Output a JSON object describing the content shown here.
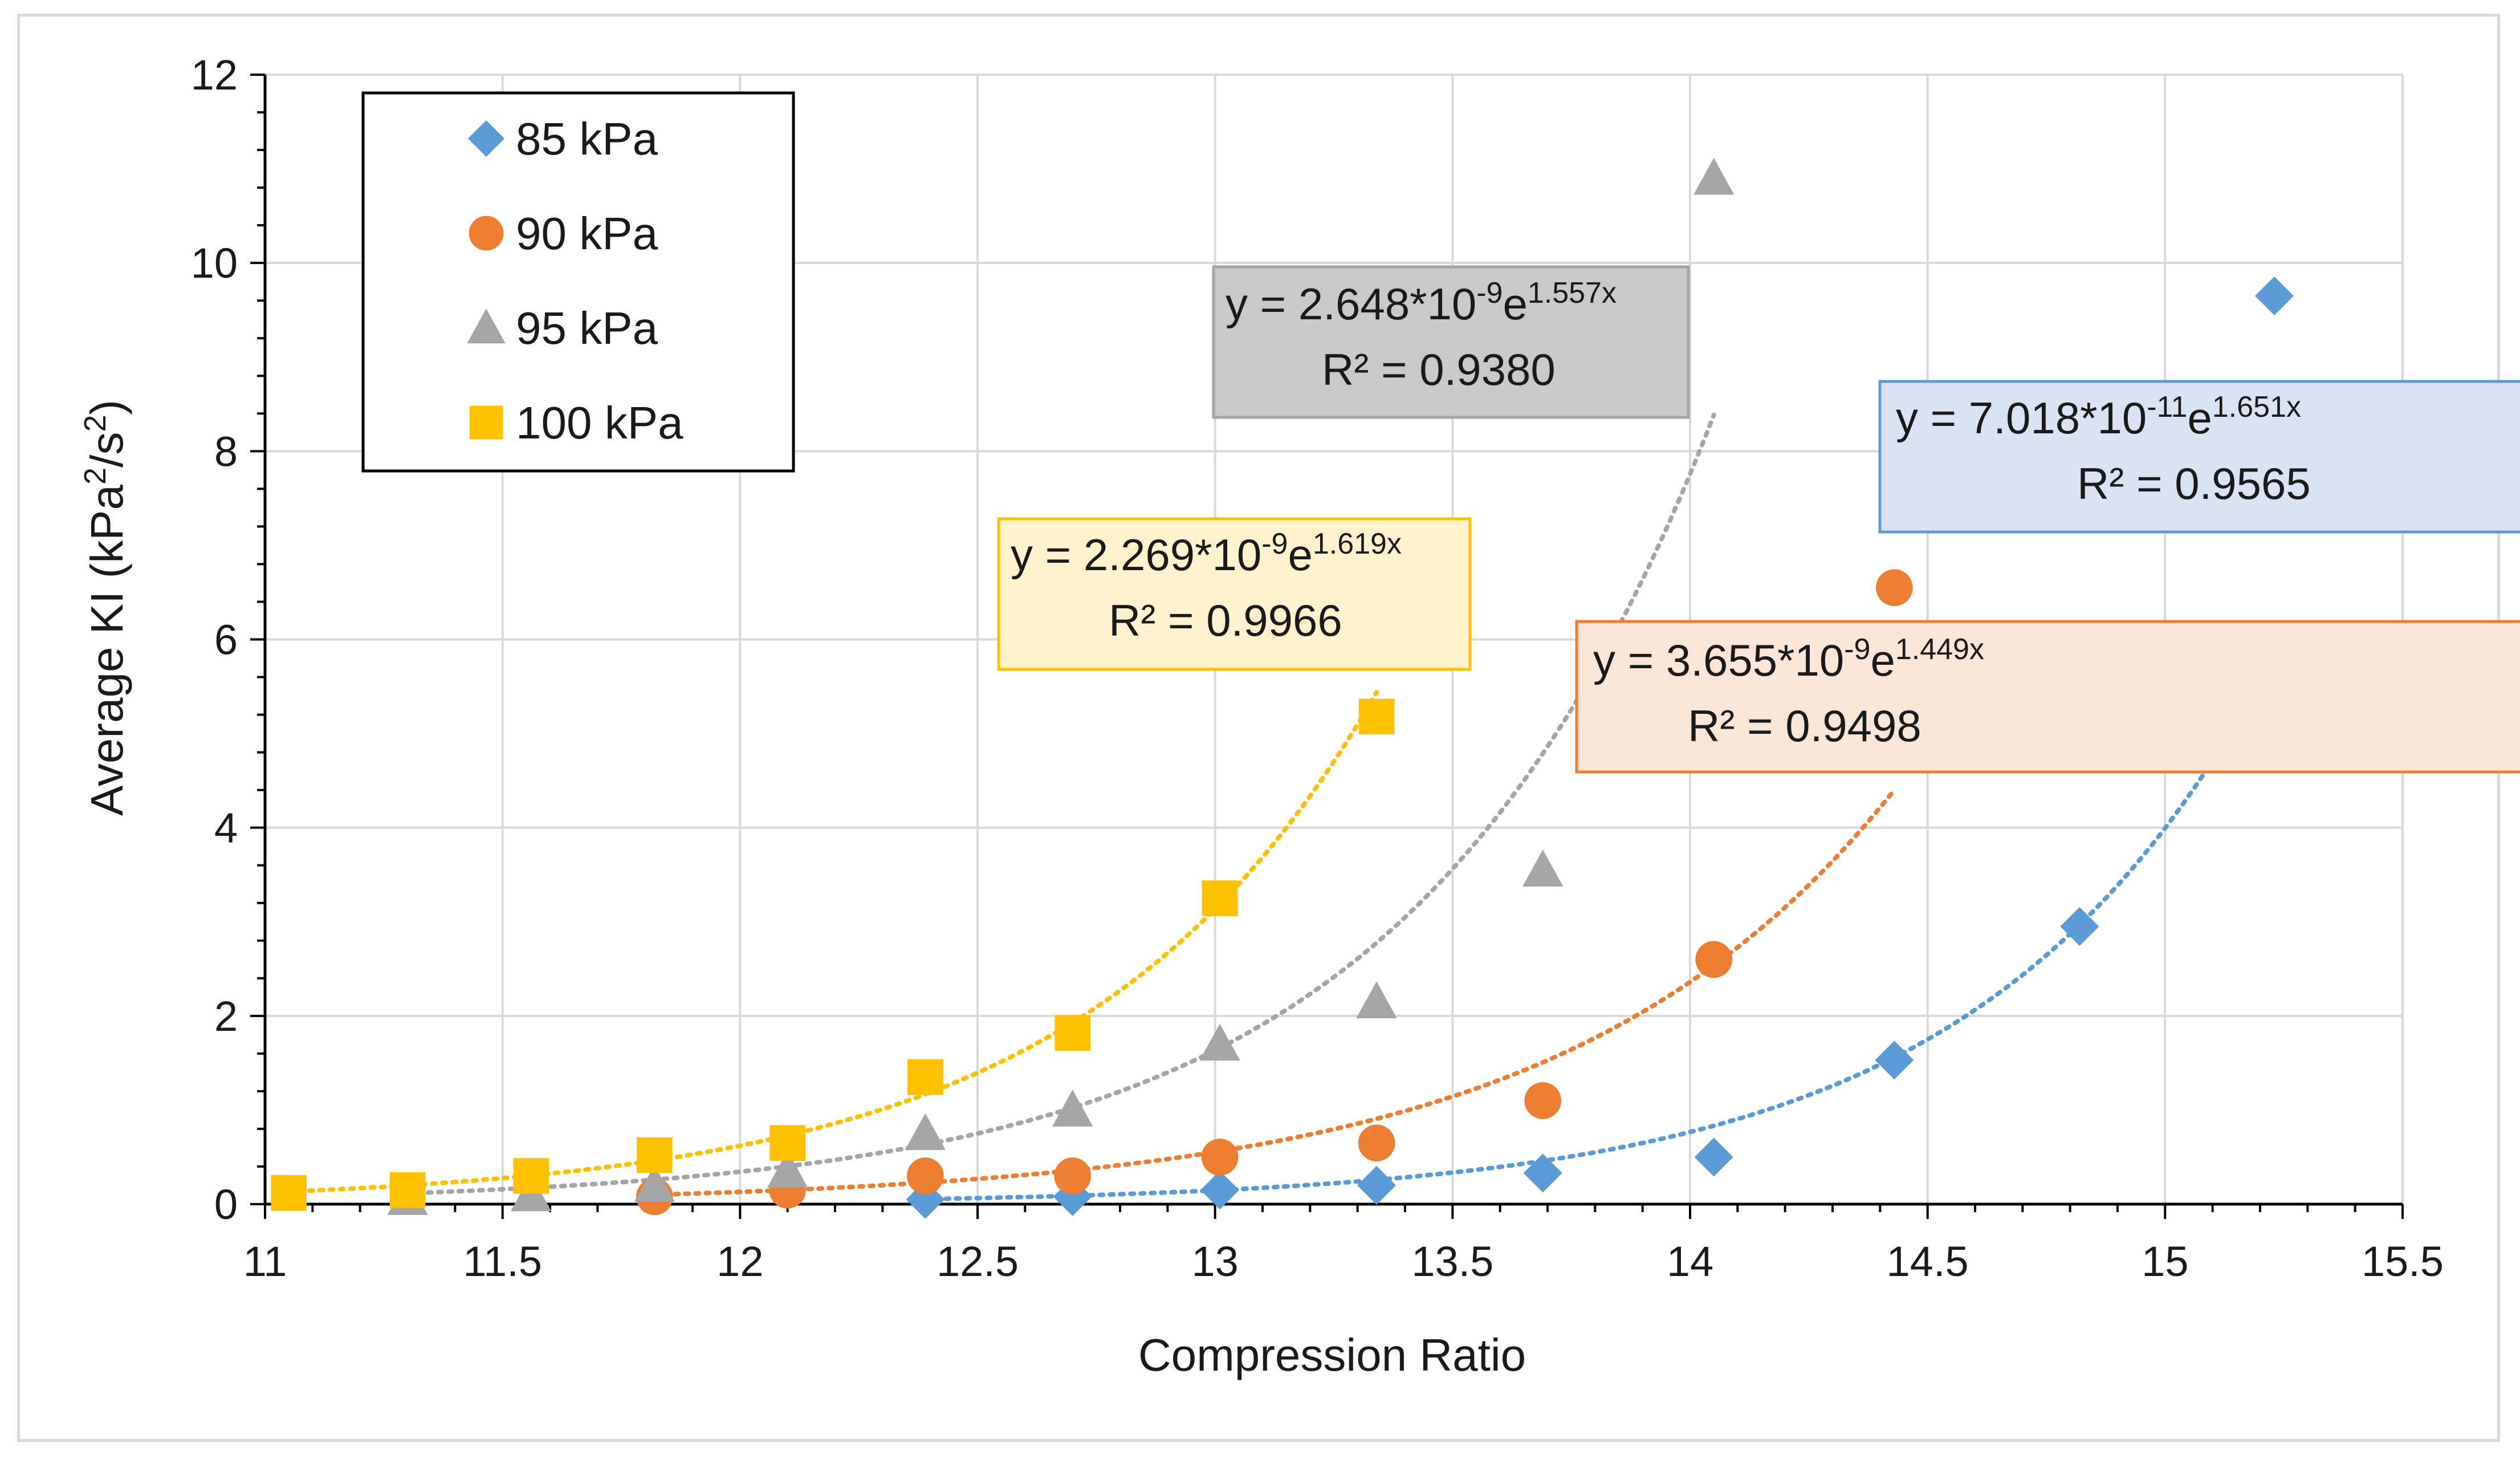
{
  "chart_data": {
    "type": "scatter",
    "title": "",
    "xlabel": "Compression Ratio",
    "ylabel": "Average KI (kPa²/s²)",
    "ylabel_parts": {
      "main": "Average KI (kPa",
      "sup1": "2",
      "mid": "/s",
      "sup2": "2",
      "end": ")"
    },
    "xlim": [
      11,
      15.5
    ],
    "ylim": [
      0,
      12
    ],
    "xticks": [
      11,
      11.5,
      12,
      12.5,
      13,
      13.5,
      14,
      14.5,
      15,
      15.5
    ],
    "xtick_labels": [
      "11",
      "11.5",
      "12",
      "12.5",
      "13",
      "13.5",
      "14",
      "14.5",
      "15",
      "15.5"
    ],
    "yticks": [
      0,
      2,
      4,
      6,
      8,
      10,
      12
    ],
    "ytick_labels": [
      "0",
      "2",
      "4",
      "6",
      "8",
      "10",
      "12"
    ],
    "grid": true,
    "legend_position": "top-left",
    "series": [
      {
        "name": "85 kPa",
        "marker": "diamond",
        "color": "#5b9bd5",
        "x": [
          12.39,
          12.7,
          13.01,
          13.34,
          13.69,
          14.05,
          14.43,
          14.82,
          15.23
        ],
        "y": [
          0.05,
          0.08,
          0.15,
          0.2,
          0.33,
          0.5,
          1.53,
          2.95,
          9.65
        ],
        "trend": {
          "a": 7.018e-11,
          "b": 1.651,
          "x_from": 12.39,
          "x_to": 15.23
        },
        "equation": {
          "lead": "y = 7.018*10",
          "exp1": "-11",
          "mid": "e",
          "exp2": "1.651x",
          "r2": "R² = 0.9565"
        },
        "box_fill": "#dae3f3",
        "box_stroke": "#5b9bd5"
      },
      {
        "name": "90 kPa",
        "marker": "circle",
        "color": "#ed7d31",
        "x": [
          11.82,
          12.1,
          12.39,
          12.7,
          13.01,
          13.34,
          13.69,
          14.05,
          14.43
        ],
        "y": [
          0.08,
          0.15,
          0.3,
          0.3,
          0.5,
          0.65,
          1.1,
          2.6,
          6.55
        ],
        "trend": {
          "a": 3.655e-09,
          "b": 1.449,
          "x_from": 11.82,
          "x_to": 14.43
        },
        "equation": {
          "lead": "y = 3.655*10",
          "exp1": "-9",
          "mid": "e",
          "exp2": "1.449x",
          "r2": "R² = 0.9498"
        },
        "box_fill": "#fbe5d6",
        "box_stroke": "#ed7d31"
      },
      {
        "name": "95 kPa",
        "marker": "triangle",
        "color": "#a5a5a5",
        "x": [
          11.3,
          11.56,
          11.82,
          12.1,
          12.39,
          12.7,
          13.01,
          13.34,
          13.69,
          14.05
        ],
        "y": [
          0.06,
          0.1,
          0.2,
          0.35,
          0.75,
          1.0,
          1.7,
          2.15,
          3.55,
          10.9
        ],
        "trend": {
          "a": 2.648e-09,
          "b": 1.557,
          "x_from": 11.3,
          "x_to": 14.05
        },
        "equation": {
          "lead": "y = 2.648*10",
          "exp1": "-9",
          "mid": "e",
          "exp2": "1.557x",
          "r2": "R² = 0.9380"
        },
        "box_fill": "#c9c9c9",
        "box_stroke": "#a5a5a5"
      },
      {
        "name": "100 kPa",
        "marker": "square",
        "color": "#ffc000",
        "x": [
          11.05,
          11.3,
          11.56,
          11.82,
          12.1,
          12.39,
          12.7,
          13.01,
          13.34
        ],
        "y": [
          0.12,
          0.15,
          0.3,
          0.52,
          0.65,
          1.35,
          1.82,
          3.25,
          5.18
        ],
        "trend": {
          "a": 2.269e-09,
          "b": 1.619,
          "x_from": 11.05,
          "x_to": 13.34
        },
        "equation": {
          "lead": "y = 2.269*10",
          "exp1": "-9",
          "mid": "e",
          "exp2": "1.619x",
          "r2": "R² = 0.9966"
        },
        "box_fill": "#fff2cc",
        "box_stroke": "#ffc000"
      }
    ]
  }
}
